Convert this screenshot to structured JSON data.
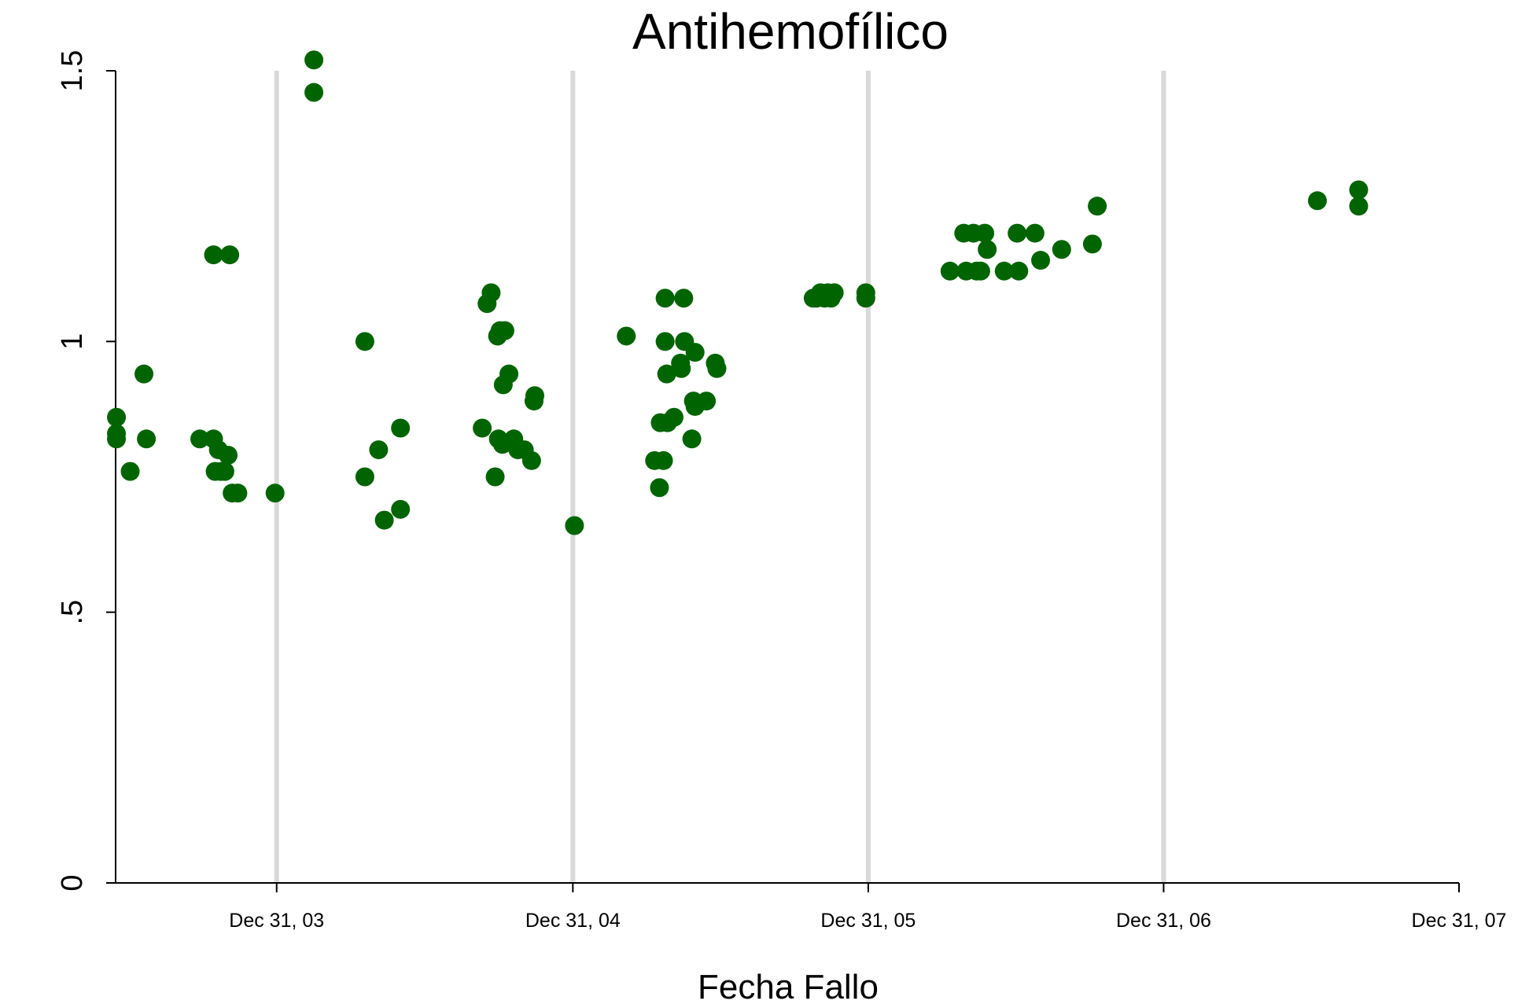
{
  "chart_data": {
    "type": "scatter",
    "title": "Antihemofílico",
    "xlabel": "Fecha Fallo",
    "ylabel": "",
    "x_axis": "date",
    "xlim": [
      "2003-06-15",
      "2007-12-31"
    ],
    "ylim": [
      0,
      1.5
    ],
    "x_ticks": [
      "2003-12-31",
      "2004-12-31",
      "2005-12-31",
      "2006-12-31",
      "2007-12-31"
    ],
    "x_tick_labels": [
      "Dec 31, 03",
      "Dec 31, 04",
      "Dec 31, 05",
      "Dec 31, 06",
      "Dec 31, 07"
    ],
    "y_ticks": [
      0,
      0.5,
      1,
      1.5
    ],
    "y_tick_labels": [
      "0",
      ".5",
      "1",
      "1.5"
    ],
    "grid": "vertical",
    "grid_color": "#d9d9d9",
    "marker_color": "#006400",
    "points": [
      {
        "x": "2003-06-16",
        "y": 0.86
      },
      {
        "x": "2003-06-16",
        "y": 0.83
      },
      {
        "x": "2003-06-16",
        "y": 0.82
      },
      {
        "x": "2003-07-03",
        "y": 0.76
      },
      {
        "x": "2003-07-20",
        "y": 0.94
      },
      {
        "x": "2003-07-23",
        "y": 0.82
      },
      {
        "x": "2003-09-27",
        "y": 0.82
      },
      {
        "x": "2003-10-14",
        "y": 0.82
      },
      {
        "x": "2003-10-14",
        "y": 1.16
      },
      {
        "x": "2003-10-16",
        "y": 0.76
      },
      {
        "x": "2003-10-20",
        "y": 0.8
      },
      {
        "x": "2003-10-23",
        "y": 0.76
      },
      {
        "x": "2003-10-28",
        "y": 0.76
      },
      {
        "x": "2003-11-01",
        "y": 0.79
      },
      {
        "x": "2003-11-03",
        "y": 1.16
      },
      {
        "x": "2003-11-06",
        "y": 0.72
      },
      {
        "x": "2003-11-13",
        "y": 0.72
      },
      {
        "x": "2003-12-29",
        "y": 0.72
      },
      {
        "x": "2004-02-15",
        "y": 1.52
      },
      {
        "x": "2004-02-15",
        "y": 1.46
      },
      {
        "x": "2004-04-18",
        "y": 1.0
      },
      {
        "x": "2004-04-18",
        "y": 0.75
      },
      {
        "x": "2004-05-05",
        "y": 0.8
      },
      {
        "x": "2004-05-12",
        "y": 0.67
      },
      {
        "x": "2004-06-01",
        "y": 0.84
      },
      {
        "x": "2004-06-01",
        "y": 0.69
      },
      {
        "x": "2004-09-10",
        "y": 0.84
      },
      {
        "x": "2004-09-16",
        "y": 1.07
      },
      {
        "x": "2004-09-21",
        "y": 1.09
      },
      {
        "x": "2004-09-26",
        "y": 0.75
      },
      {
        "x": "2004-09-29",
        "y": 1.01
      },
      {
        "x": "2004-09-30",
        "y": 0.82
      },
      {
        "x": "2004-10-02",
        "y": 1.02
      },
      {
        "x": "2004-10-05",
        "y": 0.81
      },
      {
        "x": "2004-10-06",
        "y": 0.92
      },
      {
        "x": "2004-10-08",
        "y": 1.02
      },
      {
        "x": "2004-10-13",
        "y": 0.94
      },
      {
        "x": "2004-10-19",
        "y": 0.82
      },
      {
        "x": "2004-10-24",
        "y": 0.8
      },
      {
        "x": "2004-11-01",
        "y": 0.8
      },
      {
        "x": "2004-11-10",
        "y": 0.78
      },
      {
        "x": "2004-11-13",
        "y": 0.89
      },
      {
        "x": "2004-11-14",
        "y": 0.9
      },
      {
        "x": "2005-01-02",
        "y": 0.66
      },
      {
        "x": "2005-03-07",
        "y": 1.01
      },
      {
        "x": "2005-04-11",
        "y": 0.78
      },
      {
        "x": "2005-04-17",
        "y": 0.73
      },
      {
        "x": "2005-04-18",
        "y": 0.85
      },
      {
        "x": "2005-04-22",
        "y": 0.78
      },
      {
        "x": "2005-04-24",
        "y": 1.0
      },
      {
        "x": "2005-04-24",
        "y": 1.08
      },
      {
        "x": "2005-04-26",
        "y": 0.94
      },
      {
        "x": "2005-04-27",
        "y": 0.85
      },
      {
        "x": "2005-05-05",
        "y": 0.86
      },
      {
        "x": "2005-05-13",
        "y": 0.96
      },
      {
        "x": "2005-05-14",
        "y": 0.95
      },
      {
        "x": "2005-05-17",
        "y": 1.08
      },
      {
        "x": "2005-05-18",
        "y": 1.0
      },
      {
        "x": "2005-05-27",
        "y": 0.82
      },
      {
        "x": "2005-05-29",
        "y": 0.89
      },
      {
        "x": "2005-05-31",
        "y": 0.98
      },
      {
        "x": "2005-05-31",
        "y": 0.88
      },
      {
        "x": "2005-06-14",
        "y": 0.89
      },
      {
        "x": "2005-06-25",
        "y": 0.96
      },
      {
        "x": "2005-06-27",
        "y": 0.95
      },
      {
        "x": "2005-10-24",
        "y": 1.08
      },
      {
        "x": "2005-10-28",
        "y": 1.08
      },
      {
        "x": "2005-11-02",
        "y": 1.09
      },
      {
        "x": "2005-11-07",
        "y": 1.08
      },
      {
        "x": "2005-11-11",
        "y": 1.09
      },
      {
        "x": "2005-11-15",
        "y": 1.08
      },
      {
        "x": "2005-11-19",
        "y": 1.09
      },
      {
        "x": "2005-12-28",
        "y": 1.08
      },
      {
        "x": "2005-12-28",
        "y": 1.09
      },
      {
        "x": "2006-04-11",
        "y": 1.13
      },
      {
        "x": "2006-04-28",
        "y": 1.2
      },
      {
        "x": "2006-05-01",
        "y": 1.13
      },
      {
        "x": "2006-05-10",
        "y": 1.2
      },
      {
        "x": "2006-05-14",
        "y": 1.13
      },
      {
        "x": "2006-05-19",
        "y": 1.13
      },
      {
        "x": "2006-05-24",
        "y": 1.2
      },
      {
        "x": "2006-05-27",
        "y": 1.17
      },
      {
        "x": "2006-06-17",
        "y": 1.13
      },
      {
        "x": "2006-07-03",
        "y": 1.2
      },
      {
        "x": "2006-07-05",
        "y": 1.13
      },
      {
        "x": "2006-07-25",
        "y": 1.2
      },
      {
        "x": "2006-08-01",
        "y": 1.15
      },
      {
        "x": "2006-08-27",
        "y": 1.17
      },
      {
        "x": "2006-10-04",
        "y": 1.18
      },
      {
        "x": "2006-10-10",
        "y": 1.25
      },
      {
        "x": "2007-07-09",
        "y": 1.26
      },
      {
        "x": "2007-08-29",
        "y": 1.28
      },
      {
        "x": "2007-08-29",
        "y": 1.25
      }
    ]
  }
}
